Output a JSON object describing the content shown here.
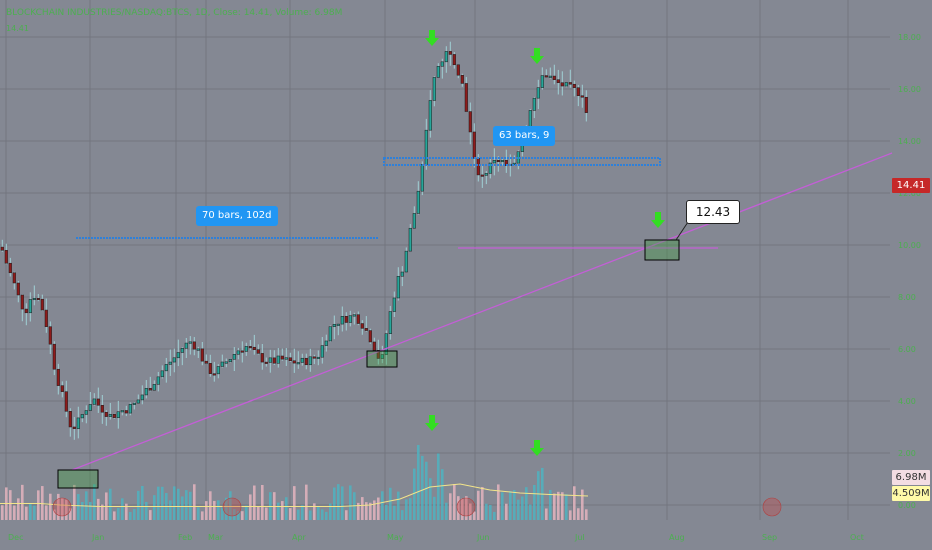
{
  "header": {
    "title": "BLOCKCHAIN INDUSTRIES/NASDAQ:BTCS, 1D, Close: 14.41, Volume: 6.98M",
    "subtitle": "14.41"
  },
  "colors": {
    "background": "#848893",
    "grid": "#73767f",
    "bull": "#26a69a",
    "bear": "#8e1b1b",
    "wick": "#9fd0d6",
    "trendline": "#c35fd6",
    "measure": "#2f80d9",
    "arrow": "#33dd22",
    "volume_ma": "#f3e58a"
  },
  "price_tag": "14.41",
  "volume_tags": [
    "6.98M",
    "4.509M"
  ],
  "callout": "12.43",
  "measure_labels": [
    "70 bars, 102d",
    "63 bars, 9"
  ],
  "chart_data": {
    "type": "candlestick",
    "y_axis_ticks": [
      20.0,
      18.0,
      16.0,
      14.0,
      12.0,
      10.0,
      8.0,
      6.0,
      4.0,
      2.0,
      0.0
    ],
    "x_axis_labels": [
      "Dec",
      "Jan",
      "Feb",
      "Mar",
      "Apr",
      "May",
      "Jun",
      "Jul",
      "Aug",
      "Sep",
      "Oct",
      "Nov",
      "Dec",
      "2022"
    ],
    "close_path": [
      [
        1,
        9.8
      ],
      [
        6,
        9.2
      ],
      [
        12,
        8.6
      ],
      [
        18,
        7.9
      ],
      [
        24,
        7.4
      ],
      [
        28,
        7.9
      ],
      [
        34,
        8.1
      ],
      [
        40,
        7.7
      ],
      [
        46,
        6.8
      ],
      [
        52,
        5.5
      ],
      [
        58,
        4.6
      ],
      [
        64,
        3.8
      ],
      [
        68,
        3.1
      ],
      [
        74,
        3.0
      ],
      [
        80,
        3.4
      ],
      [
        86,
        3.8
      ],
      [
        92,
        4.1
      ],
      [
        98,
        3.8
      ],
      [
        104,
        3.6
      ],
      [
        110,
        3.4
      ],
      [
        118,
        3.6
      ],
      [
        126,
        3.7
      ],
      [
        134,
        3.9
      ],
      [
        142,
        4.3
      ],
      [
        150,
        4.6
      ],
      [
        158,
        5.0
      ],
      [
        166,
        5.4
      ],
      [
        174,
        5.7
      ],
      [
        182,
        6.1
      ],
      [
        190,
        6.3
      ],
      [
        198,
        5.9
      ],
      [
        206,
        5.2
      ],
      [
        214,
        5.1
      ],
      [
        222,
        5.4
      ],
      [
        230,
        5.7
      ],
      [
        238,
        6.0
      ],
      [
        246,
        6.1
      ],
      [
        254,
        5.8
      ],
      [
        262,
        5.6
      ],
      [
        270,
        5.5
      ],
      [
        280,
        5.6
      ],
      [
        290,
        5.5
      ],
      [
        300,
        5.5
      ],
      [
        310,
        5.6
      ],
      [
        318,
        5.8
      ],
      [
        324,
        6.4
      ],
      [
        330,
        6.9
      ],
      [
        338,
        7.1
      ],
      [
        346,
        7.2
      ],
      [
        354,
        7.3
      ],
      [
        362,
        6.9
      ],
      [
        368,
        6.5
      ],
      [
        374,
        6.0
      ],
      [
        380,
        5.4
      ],
      [
        384,
        6.4
      ],
      [
        390,
        7.6
      ],
      [
        396,
        8.6
      ],
      [
        402,
        9.2
      ],
      [
        408,
        10.4
      ],
      [
        414,
        11.4
      ],
      [
        420,
        12.6
      ],
      [
        426,
        14.7
      ],
      [
        430,
        16.0
      ],
      [
        436,
        16.8
      ],
      [
        442,
        17.2
      ],
      [
        448,
        17.6
      ],
      [
        454,
        17.0
      ],
      [
        460,
        16.4
      ],
      [
        464,
        15.5
      ],
      [
        468,
        14.6
      ],
      [
        472,
        13.3
      ],
      [
        476,
        12.9
      ],
      [
        480,
        12.6
      ],
      [
        484,
        12.8
      ],
      [
        490,
        13.1
      ],
      [
        494,
        13.4
      ],
      [
        500,
        13.2
      ],
      [
        506,
        13.0
      ],
      [
        512,
        13.0
      ],
      [
        518,
        13.5
      ],
      [
        522,
        14.2
      ],
      [
        528,
        15.1
      ],
      [
        534,
        15.9
      ],
      [
        540,
        16.5
      ],
      [
        546,
        16.6
      ],
      [
        552,
        16.3
      ],
      [
        558,
        16.2
      ],
      [
        564,
        16.1
      ],
      [
        570,
        16.0
      ],
      [
        576,
        15.9
      ],
      [
        582,
        15.8
      ],
      [
        588,
        14.4
      ]
    ],
    "volume_ma_path": [
      [
        0,
        0.11
      ],
      [
        40,
        0.11
      ],
      [
        60,
        0.1
      ],
      [
        100,
        0.09
      ],
      [
        140,
        0.09
      ],
      [
        180,
        0.09
      ],
      [
        220,
        0.09
      ],
      [
        260,
        0.09
      ],
      [
        300,
        0.09
      ],
      [
        340,
        0.09
      ],
      [
        370,
        0.1
      ],
      [
        400,
        0.14
      ],
      [
        430,
        0.22
      ],
      [
        460,
        0.24
      ],
      [
        490,
        0.2
      ],
      [
        520,
        0.18
      ],
      [
        550,
        0.17
      ],
      [
        588,
        0.16
      ]
    ]
  }
}
